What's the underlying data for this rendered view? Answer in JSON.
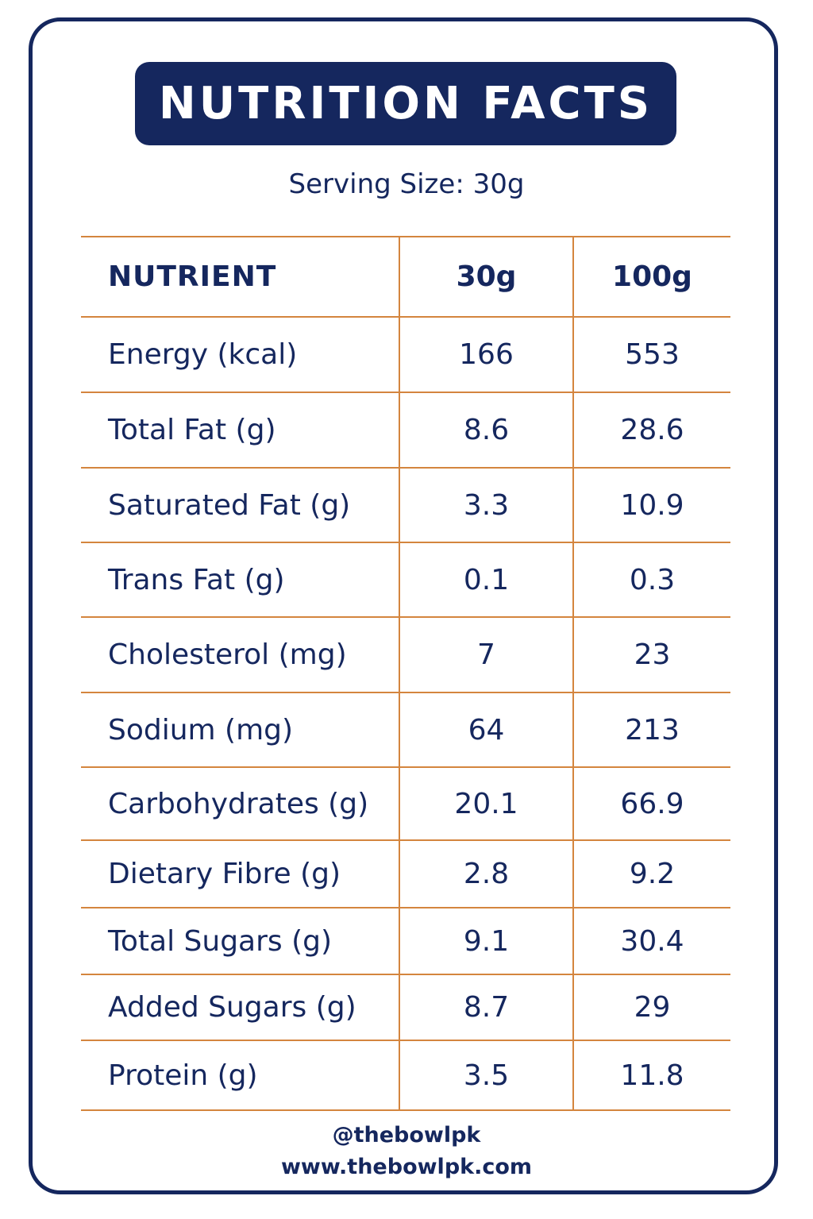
{
  "title": "NUTRITION FACTS",
  "serving_size": "Serving Size: 30g",
  "table": {
    "headers": [
      "NUTRIENT",
      "30g",
      "100g"
    ],
    "rows": [
      [
        "Energy (kcal)",
        "166",
        "553"
      ],
      [
        "Total Fat (g)",
        "8.6",
        "28.6"
      ],
      [
        "Saturated Fat (g)",
        "3.3",
        "10.9"
      ],
      [
        "Trans Fat (g)",
        "0.1",
        "0.3"
      ],
      [
        "Cholesterol (mg)",
        "7",
        "23"
      ],
      [
        "Sodium (mg)",
        "64",
        "213"
      ],
      [
        "Carbohydrates (g)",
        "20.1",
        "66.9"
      ],
      [
        "Dietary Fibre (g)",
        "2.8",
        "9.2"
      ],
      [
        "Total Sugars (g)",
        "9.1",
        "30.4"
      ],
      [
        "Added Sugars (g)",
        "8.7",
        "29"
      ],
      [
        "Protein (g)",
        "3.5",
        "11.8"
      ]
    ]
  },
  "footer": {
    "handle": "@thebowlpk",
    "website": "www.thebowlpk.com"
  },
  "colors": {
    "navy": "#15275e",
    "grid_orange": "#d4853e",
    "background": "#ffffff"
  }
}
